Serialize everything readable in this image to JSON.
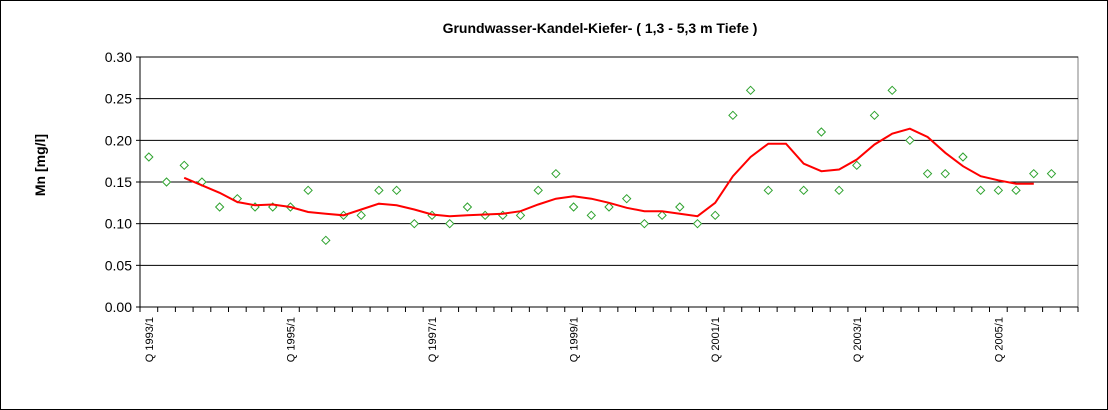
{
  "chart_data": {
    "type": "scatter+line",
    "title": "Grundwasser-Kandel-Kiefer- ( 1,3 - 5,3 m Tiefe )",
    "ylabel": "Mn [mg/l]",
    "xlabel": "",
    "ylim": [
      0,
      0.3
    ],
    "y_ticks": [
      "0.00",
      "0.05",
      "0.10",
      "0.15",
      "0.20",
      "0.25",
      "0.30"
    ],
    "x_tick_labels": [
      {
        "index": 0,
        "label": "Q 1993/1"
      },
      {
        "index": 8,
        "label": "Q 1995/1"
      },
      {
        "index": 16,
        "label": "Q 1997/1"
      },
      {
        "index": 24,
        "label": "Q 1999/1"
      },
      {
        "index": 32,
        "label": "Q 2001/1"
      },
      {
        "index": 40,
        "label": "Q 2003/1"
      },
      {
        "index": 48,
        "label": "Q 2005/1"
      }
    ],
    "quarters": 53,
    "grid": true,
    "series": [
      {
        "kind": "scatter",
        "marker": "diamond",
        "color": "#2ea22e",
        "points": [
          [
            0,
            0.18
          ],
          [
            1,
            0.15
          ],
          [
            2,
            0.17
          ],
          [
            3,
            0.15
          ],
          [
            4,
            0.12
          ],
          [
            5,
            0.13
          ],
          [
            6,
            0.12
          ],
          [
            7,
            0.12
          ],
          [
            8,
            0.12
          ],
          [
            9,
            0.14
          ],
          [
            10,
            0.08
          ],
          [
            11,
            0.11
          ],
          [
            12,
            0.11
          ],
          [
            13,
            0.14
          ],
          [
            14,
            0.14
          ],
          [
            15,
            0.1
          ],
          [
            16,
            0.11
          ],
          [
            17,
            0.1
          ],
          [
            18,
            0.12
          ],
          [
            19,
            0.11
          ],
          [
            20,
            0.11
          ],
          [
            21,
            0.11
          ],
          [
            22,
            0.14
          ],
          [
            23,
            0.16
          ],
          [
            24,
            0.12
          ],
          [
            25,
            0.11
          ],
          [
            26,
            0.12
          ],
          [
            27,
            0.13
          ],
          [
            28,
            0.1
          ],
          [
            29,
            0.11
          ],
          [
            30,
            0.12
          ],
          [
            31,
            0.1
          ],
          [
            32,
            0.11
          ],
          [
            33,
            0.23
          ],
          [
            34,
            0.26
          ],
          [
            35,
            0.14
          ],
          [
            37,
            0.14
          ],
          [
            38,
            0.21
          ],
          [
            39,
            0.14
          ],
          [
            40,
            0.17
          ],
          [
            41,
            0.23
          ],
          [
            42,
            0.26
          ],
          [
            43,
            0.2
          ],
          [
            44,
            0.16
          ],
          [
            45,
            0.16
          ],
          [
            46,
            0.18
          ],
          [
            47,
            0.14
          ],
          [
            48,
            0.14
          ],
          [
            49,
            0.14
          ],
          [
            50,
            0.16
          ],
          [
            51,
            0.16
          ]
        ]
      },
      {
        "kind": "line",
        "color": "#ff0000",
        "points": [
          [
            2,
            0.155
          ],
          [
            3,
            0.146
          ],
          [
            4,
            0.137
          ],
          [
            5,
            0.126
          ],
          [
            6,
            0.122
          ],
          [
            7,
            0.123
          ],
          [
            8,
            0.12
          ],
          [
            9,
            0.114
          ],
          [
            10,
            0.112
          ],
          [
            11,
            0.11
          ],
          [
            12,
            0.117
          ],
          [
            13,
            0.124
          ],
          [
            14,
            0.122
          ],
          [
            15,
            0.117
          ],
          [
            16,
            0.111
          ],
          [
            17,
            0.109
          ],
          [
            18,
            0.11
          ],
          [
            19,
            0.111
          ],
          [
            20,
            0.112
          ],
          [
            21,
            0.115
          ],
          [
            22,
            0.123
          ],
          [
            23,
            0.13
          ],
          [
            24,
            0.133
          ],
          [
            25,
            0.13
          ],
          [
            26,
            0.125
          ],
          [
            27,
            0.119
          ],
          [
            28,
            0.115
          ],
          [
            29,
            0.115
          ],
          [
            30,
            0.112
          ],
          [
            31,
            0.109
          ],
          [
            32,
            0.125
          ],
          [
            33,
            0.157
          ],
          [
            34,
            0.18
          ],
          [
            35,
            0.196
          ],
          [
            36,
            0.196
          ],
          [
            37,
            0.172
          ],
          [
            38,
            0.163
          ],
          [
            39,
            0.165
          ],
          [
            40,
            0.177
          ],
          [
            41,
            0.195
          ],
          [
            42,
            0.208
          ],
          [
            43,
            0.214
          ],
          [
            44,
            0.204
          ],
          [
            45,
            0.185
          ],
          [
            46,
            0.169
          ],
          [
            47,
            0.157
          ],
          [
            48,
            0.152
          ],
          [
            49,
            0.148
          ],
          [
            50,
            0.148
          ]
        ]
      }
    ]
  }
}
